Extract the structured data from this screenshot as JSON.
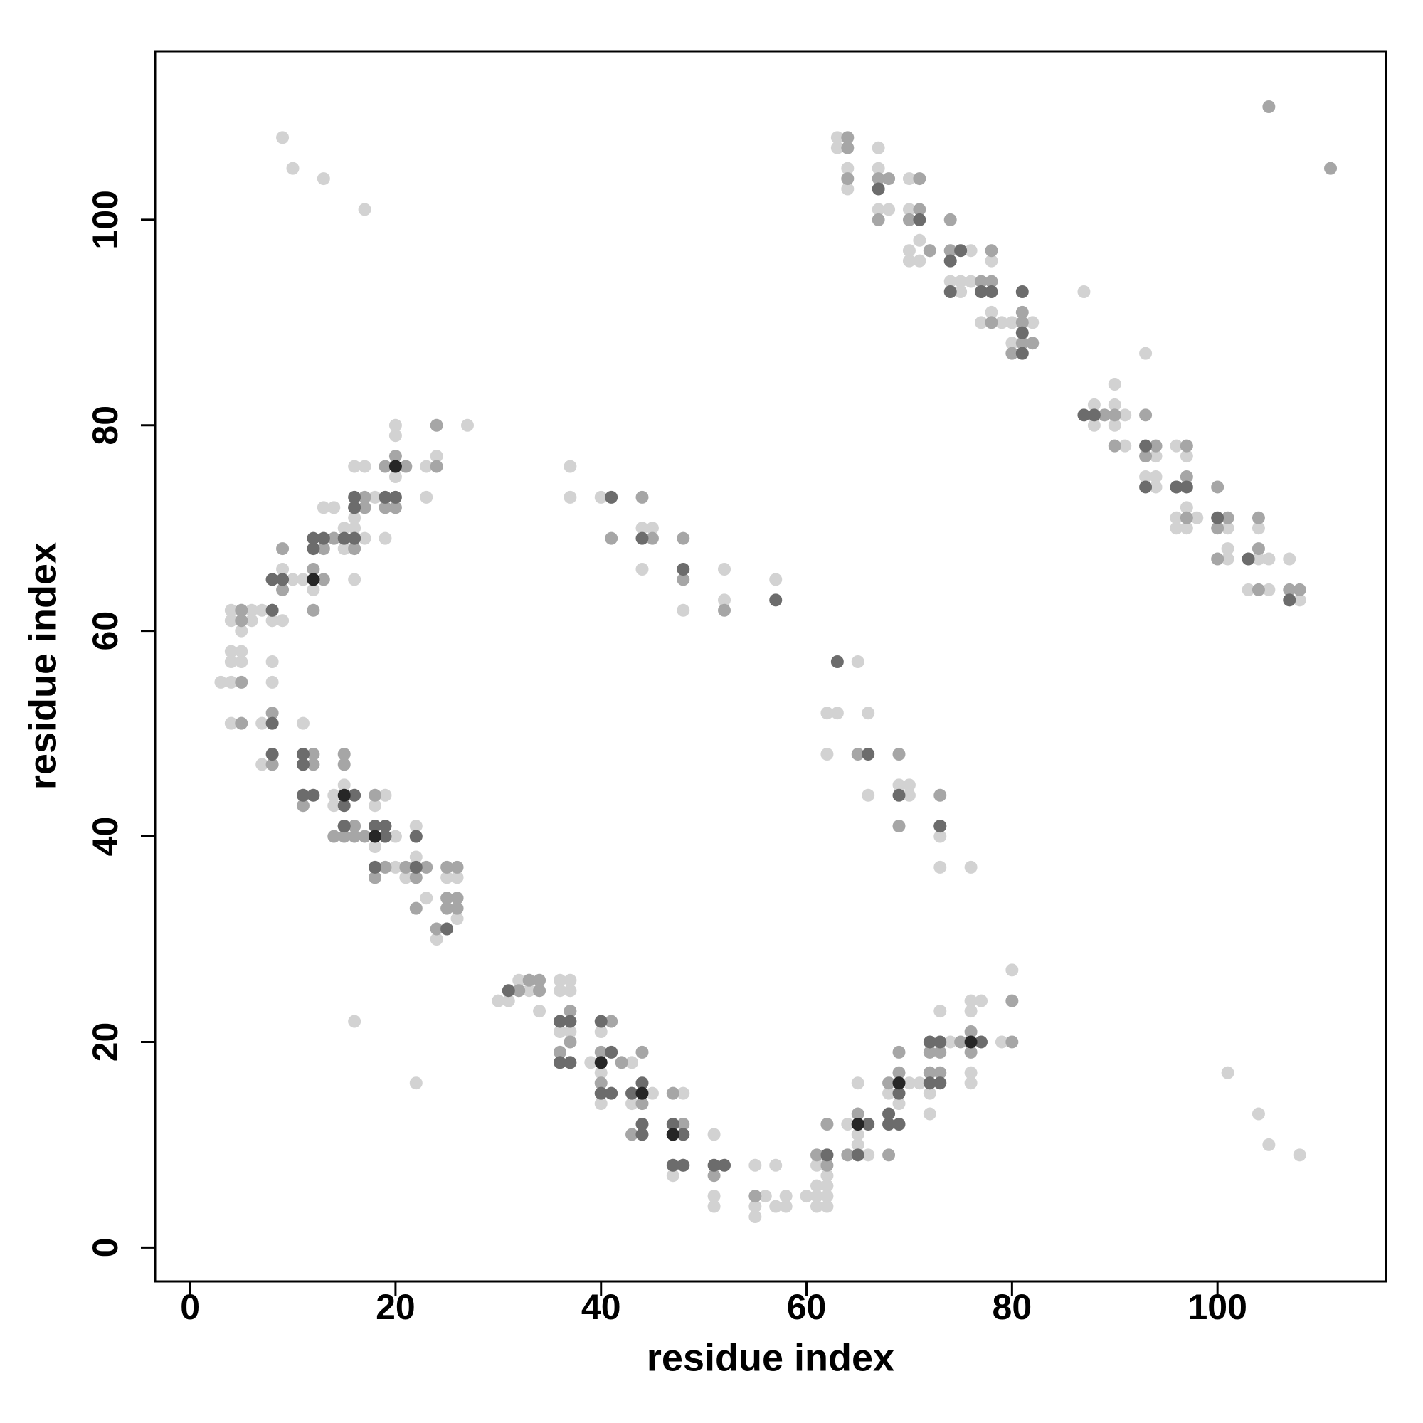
{
  "chart_data": {
    "type": "scatter",
    "x_label": "residue index",
    "y_label": "residue index",
    "xlim": [
      -3.4,
      116.4
    ],
    "ylim": [
      -3.3,
      116.4
    ],
    "xticks": [
      0,
      20,
      40,
      60,
      80,
      100
    ],
    "yticks": [
      0,
      20,
      40,
      60,
      80,
      100
    ],
    "series": [
      {
        "color": "#d2d2d2",
        "x": [
          9,
          10,
          13,
          17,
          63,
          63,
          64,
          64,
          67,
          67,
          67,
          68,
          70,
          70,
          70,
          70,
          71,
          71,
          72,
          74,
          75,
          75,
          76,
          76,
          77,
          78,
          78,
          79,
          80,
          80,
          82,
          87,
          88,
          88,
          89,
          90,
          90,
          90,
          91,
          91,
          93,
          93,
          94,
          94,
          94,
          96,
          96,
          96,
          97,
          97,
          97,
          98,
          101,
          101,
          101,
          103,
          104,
          104,
          105,
          105,
          107,
          108,
          20,
          20,
          20,
          24,
          27,
          23,
          23,
          16,
          17,
          18,
          14,
          13,
          15,
          16,
          16,
          15,
          14,
          17,
          19,
          16,
          10,
          11,
          12,
          9,
          9,
          8,
          7,
          6,
          5,
          4,
          4,
          5,
          6,
          4,
          5,
          4,
          5,
          3,
          4,
          8,
          8,
          4,
          7,
          7,
          11,
          14,
          14,
          15,
          16,
          18,
          18,
          19,
          20,
          20,
          21,
          22,
          22,
          23,
          25,
          26,
          26,
          24,
          16,
          22,
          37,
          37,
          40,
          44,
          45,
          44,
          48,
          52,
          52,
          57,
          62,
          63,
          65,
          66,
          66,
          69,
          70,
          70,
          73,
          73,
          76,
          62,
          30,
          31,
          32,
          33,
          32,
          34,
          33,
          36,
          37,
          36,
          37,
          36,
          37,
          37,
          36,
          39,
          40,
          40,
          41,
          40,
          43,
          43,
          45,
          44,
          47,
          48,
          51,
          51,
          51,
          52,
          55,
          55,
          55,
          56,
          57,
          57,
          58,
          58,
          60,
          61,
          61,
          62,
          62,
          62,
          61,
          62,
          61,
          64,
          65,
          65,
          65,
          66,
          68,
          69,
          70,
          71,
          72,
          72,
          73,
          74,
          76,
          76,
          76,
          76,
          77,
          79,
          80,
          101,
          104,
          105,
          108
        ],
        "values": [
          108,
          105,
          104,
          101,
          108,
          107,
          105,
          103,
          107,
          105,
          101,
          101,
          104,
          101,
          97,
          96,
          98,
          96,
          97,
          94,
          94,
          93,
          97,
          94,
          90,
          96,
          91,
          90,
          90,
          88,
          90,
          93,
          82,
          80,
          81,
          84,
          82,
          80,
          81,
          78,
          87,
          75,
          75,
          77,
          74,
          78,
          70,
          71,
          72,
          77,
          70,
          71,
          70,
          68,
          67,
          64,
          70,
          67,
          67,
          64,
          67,
          63,
          80,
          79,
          75,
          77,
          80,
          76,
          73,
          76,
          76,
          73,
          72,
          72,
          70,
          71,
          70,
          68,
          69,
          69,
          69,
          65,
          65,
          65,
          64,
          66,
          61,
          61,
          62,
          62,
          62,
          62,
          61,
          60,
          61,
          58,
          58,
          57,
          57,
          55,
          55,
          55,
          57,
          51,
          51,
          47,
          51,
          44,
          43,
          45,
          41,
          39,
          43,
          44,
          40,
          37,
          36,
          38,
          41,
          34,
          36,
          36,
          32,
          30,
          22,
          16,
          76,
          73,
          73,
          70,
          70,
          66,
          62,
          66,
          63,
          65,
          52,
          52,
          57,
          52,
          44,
          45,
          45,
          44,
          40,
          37,
          37,
          48,
          24,
          24,
          26,
          26,
          25,
          23,
          25,
          26,
          26,
          25,
          25,
          21,
          21,
          20,
          19,
          18,
          21,
          17,
          22,
          14,
          18,
          14,
          15,
          19,
          7,
          15,
          11,
          5,
          4,
          8,
          8,
          3,
          4,
          5,
          8,
          4,
          5,
          4,
          5,
          4,
          5,
          5,
          4,
          6,
          6,
          7,
          8,
          12,
          16,
          11,
          10,
          9,
          15,
          14,
          16,
          16,
          13,
          15,
          23,
          20,
          24,
          23,
          17,
          16,
          24,
          20,
          27,
          17,
          13,
          10,
          9
        ]
      },
      {
        "color": "#a6a6a6",
        "x": [
          105,
          111,
          64,
          64,
          64,
          67,
          67,
          68,
          70,
          71,
          71,
          72,
          74,
          74,
          77,
          77,
          78,
          78,
          78,
          80,
          81,
          81,
          81,
          82,
          89,
          90,
          90,
          93,
          94,
          93,
          96,
          97,
          97,
          97,
          100,
          100,
          100,
          101,
          103,
          104,
          104,
          104,
          107,
          108,
          9,
          9,
          8,
          8,
          12,
          12,
          13,
          13,
          14,
          16,
          16,
          17,
          17,
          19,
          20,
          19,
          20,
          21,
          24,
          24,
          5,
          5,
          5,
          5,
          8,
          8,
          11,
          12,
          12,
          15,
          15,
          15,
          16,
          16,
          18,
          17,
          19,
          19,
          18,
          21,
          22,
          22,
          22,
          23,
          24,
          25,
          25,
          26,
          26,
          26,
          25,
          14,
          12,
          41,
          45,
          48,
          48,
          52,
          44,
          65,
          69,
          69,
          73,
          73,
          32,
          33,
          34,
          34,
          36,
          37,
          37,
          36,
          40,
          40,
          41,
          42,
          43,
          44,
          44,
          48,
          47,
          48,
          51,
          55,
          61,
          62,
          62,
          62,
          64,
          65,
          68,
          68,
          69,
          69,
          72,
          72,
          73,
          75,
          76,
          76,
          80,
          80,
          73
        ],
        "values": [
          111,
          105,
          108,
          107,
          104,
          104,
          100,
          104,
          100,
          104,
          101,
          97,
          100,
          97,
          94,
          93,
          97,
          94,
          90,
          87,
          90,
          91,
          88,
          88,
          81,
          81,
          78,
          81,
          78,
          77,
          74,
          78,
          75,
          71,
          74,
          70,
          67,
          71,
          67,
          71,
          68,
          64,
          64,
          64,
          68,
          64,
          65,
          62,
          65,
          66,
          65,
          68,
          69,
          72,
          68,
          72,
          73,
          72,
          72,
          76,
          77,
          76,
          76,
          80,
          62,
          61,
          55,
          51,
          52,
          47,
          43,
          48,
          47,
          48,
          47,
          40,
          40,
          41,
          44,
          40,
          40,
          37,
          36,
          37,
          36,
          33,
          40,
          37,
          31,
          34,
          33,
          34,
          33,
          37,
          37,
          40,
          62,
          69,
          69,
          69,
          65,
          62,
          73,
          48,
          48,
          41,
          44,
          41,
          25,
          26,
          26,
          25,
          22,
          23,
          20,
          19,
          19,
          16,
          22,
          18,
          11,
          19,
          14,
          12,
          15,
          8,
          7,
          5,
          9,
          12,
          9,
          8,
          9,
          13,
          16,
          9,
          19,
          17,
          19,
          17,
          19,
          20,
          19,
          21,
          20,
          24,
          17
        ]
      },
      {
        "color": "#6c6c6c",
        "x": [
          67,
          71,
          74,
          74,
          75,
          77,
          78,
          81,
          81,
          81,
          87,
          88,
          93,
          93,
          96,
          97,
          100,
          103,
          107,
          8,
          9,
          8,
          8,
          8,
          11,
          11,
          12,
          12,
          13,
          15,
          16,
          16,
          16,
          19,
          20,
          12,
          11,
          12,
          15,
          15,
          16,
          15,
          18,
          19,
          18,
          22,
          22,
          25,
          19,
          41,
          44,
          48,
          57,
          63,
          66,
          69,
          73,
          31,
          36,
          37,
          36,
          37,
          40,
          41,
          40,
          41,
          43,
          44,
          44,
          44,
          47,
          47,
          48,
          47,
          48,
          51,
          52,
          62,
          65,
          65,
          66,
          68,
          68,
          69,
          69,
          72,
          72,
          73,
          73,
          77
        ],
        "values": [
          103,
          100,
          96,
          93,
          97,
          93,
          93,
          93,
          89,
          87,
          81,
          81,
          78,
          74,
          74,
          74,
          71,
          67,
          63,
          65,
          65,
          62,
          51,
          48,
          48,
          47,
          68,
          69,
          69,
          69,
          69,
          73,
          72,
          73,
          73,
          65,
          44,
          44,
          43,
          41,
          44,
          41,
          41,
          41,
          37,
          37,
          40,
          31,
          40,
          73,
          69,
          66,
          63,
          57,
          48,
          44,
          41,
          25,
          22,
          22,
          18,
          18,
          22,
          19,
          15,
          15,
          15,
          16,
          12,
          11,
          12,
          11,
          11,
          8,
          8,
          8,
          8,
          9,
          9,
          12,
          12,
          13,
          12,
          15,
          12,
          20,
          16,
          20,
          16,
          20
        ]
      },
      {
        "color": "#262626",
        "x": [
          15,
          18,
          20,
          12,
          40,
          44,
          47,
          65,
          69,
          76
        ],
        "values": [
          44,
          40,
          76,
          65,
          18,
          15,
          11,
          12,
          16,
          20
        ]
      }
    ]
  }
}
